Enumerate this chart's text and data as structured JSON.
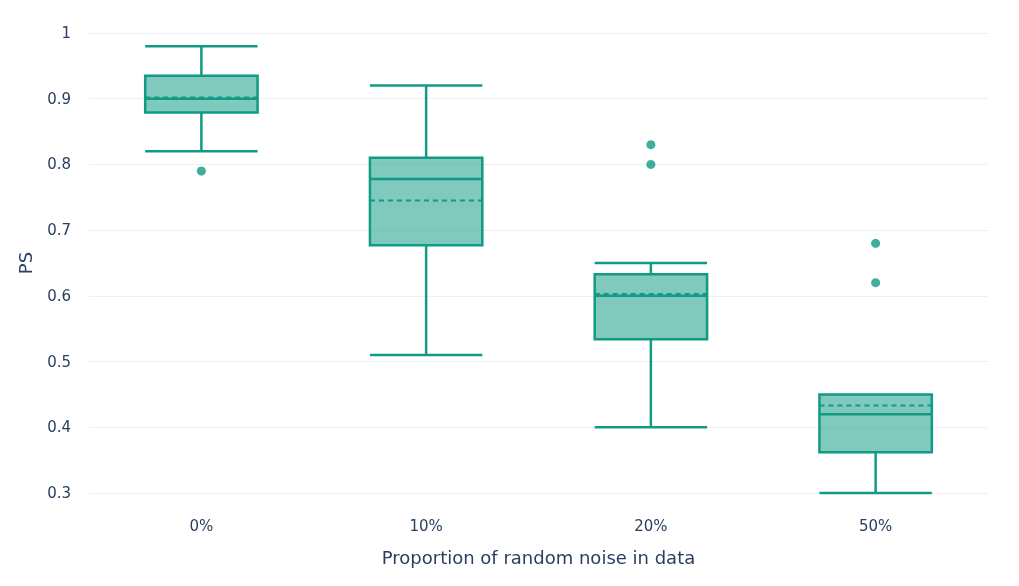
{
  "chart_data": {
    "type": "box",
    "xlabel": "Proportion of random noise in data",
    "ylabel": "PS",
    "categories": [
      "0%",
      "10%",
      "20%",
      "50%"
    ],
    "color": "#119a84",
    "boxes": [
      {
        "low": 0.82,
        "q1": 0.879,
        "median": 0.9,
        "q3": 0.935,
        "high": 0.98,
        "mean": 0.902,
        "outliers": [
          0.79
        ]
      },
      {
        "low": 0.51,
        "q1": 0.677,
        "median": 0.778,
        "q3": 0.81,
        "high": 0.92,
        "mean": 0.745
      },
      {
        "low": 0.4,
        "q1": 0.534,
        "median": 0.6,
        "q3": 0.633,
        "high": 0.65,
        "mean": 0.603,
        "outliers": [
          0.83,
          0.8
        ]
      },
      {
        "low": 0.3,
        "q1": 0.362,
        "median": 0.42,
        "q3": 0.45,
        "high": 0.45,
        "mean": 0.433,
        "outliers": [
          0.68,
          0.62
        ]
      }
    ],
    "ylim": [
      0.3,
      1
    ],
    "yticks": [
      0.3,
      0.4,
      0.5,
      0.6,
      0.7,
      0.8,
      0.9,
      1
    ],
    "grid": "y"
  }
}
